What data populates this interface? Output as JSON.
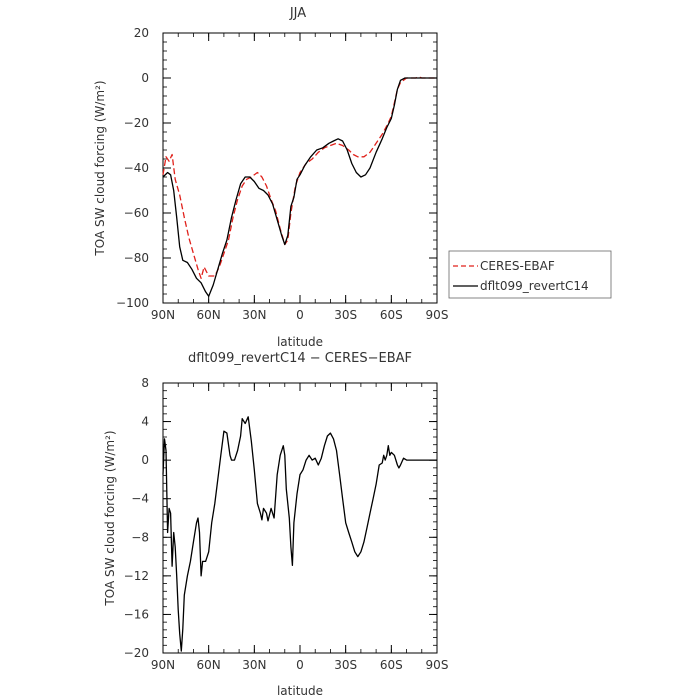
{
  "chart_data": [
    {
      "type": "line",
      "title": "JJA",
      "xlabel": "latitude",
      "ylabel": "TOA SW cloud forcing (W/m²)",
      "ylim": [
        -100,
        20
      ],
      "xlim": [
        90,
        -90
      ],
      "x_ticks": [
        90,
        60,
        30,
        0,
        -30,
        -60,
        -90
      ],
      "x_tick_labels": [
        "90N",
        "60N",
        "30N",
        "0",
        "30S",
        "60S",
        "90S"
      ],
      "y_ticks": [
        -100,
        -80,
        -60,
        -40,
        -20,
        0,
        20
      ],
      "legend_position": "right",
      "grid": false,
      "series": [
        {
          "name": "CERES-EBAF",
          "color": "#e0211b",
          "dash": true,
          "points": [
            [
              90,
              -43
            ],
            [
              88,
              -35
            ],
            [
              86,
              -37
            ],
            [
              84,
              -34
            ],
            [
              82,
              -45
            ],
            [
              79,
              -52
            ],
            [
              76,
              -62
            ],
            [
              73,
              -71
            ],
            [
              70,
              -78
            ],
            [
              67,
              -85
            ],
            [
              65,
              -89
            ],
            [
              63,
              -84
            ],
            [
              60,
              -88
            ],
            [
              56,
              -88
            ],
            [
              53,
              -84
            ],
            [
              50,
              -78
            ],
            [
              47,
              -72
            ],
            [
              44,
              -62
            ],
            [
              41,
              -54
            ],
            [
              38,
              -48
            ],
            [
              35,
              -45
            ],
            [
              32,
              -44
            ],
            [
              28,
              -42
            ],
            [
              25,
              -44
            ],
            [
              22,
              -48
            ],
            [
              19,
              -54
            ],
            [
              16,
              -59
            ],
            [
              13,
              -67
            ],
            [
              10,
              -74
            ],
            [
              8,
              -72
            ],
            [
              6,
              -60
            ],
            [
              3,
              -48
            ],
            [
              0,
              -42
            ],
            [
              -4,
              -38
            ],
            [
              -8,
              -36
            ],
            [
              -12,
              -33
            ],
            [
              -16,
              -31
            ],
            [
              -20,
              -30
            ],
            [
              -24,
              -29
            ],
            [
              -28,
              -30
            ],
            [
              -32,
              -32
            ],
            [
              -35,
              -34
            ],
            [
              -38,
              -35
            ],
            [
              -42,
              -35
            ],
            [
              -46,
              -33
            ],
            [
              -50,
              -29
            ],
            [
              -54,
              -25
            ],
            [
              -58,
              -20
            ],
            [
              -60,
              -17
            ],
            [
              -62,
              -11
            ],
            [
              -64,
              -5
            ],
            [
              -66,
              -2
            ],
            [
              -70,
              0
            ],
            [
              -74,
              0
            ],
            [
              -76,
              0
            ],
            [
              -78,
              0.5
            ],
            [
              -80,
              0
            ],
            [
              -85,
              0
            ],
            [
              -90,
              0
            ]
          ]
        },
        {
          "name": "dflt099_revertC14",
          "color": "#000000",
          "dash": false,
          "points": [
            [
              90,
              -44
            ],
            [
              87,
              -42
            ],
            [
              85,
              -43
            ],
            [
              83,
              -50
            ],
            [
              81,
              -62
            ],
            [
              79,
              -75
            ],
            [
              77,
              -81
            ],
            [
              74,
              -82
            ],
            [
              71,
              -85
            ],
            [
              68,
              -89
            ],
            [
              65,
              -91
            ],
            [
              62,
              -95
            ],
            [
              60,
              -97
            ],
            [
              57,
              -92
            ],
            [
              54,
              -85
            ],
            [
              51,
              -78
            ],
            [
              48,
              -72
            ],
            [
              45,
              -62
            ],
            [
              42,
              -54
            ],
            [
              39,
              -47
            ],
            [
              36,
              -44
            ],
            [
              33,
              -44
            ],
            [
              30,
              -46
            ],
            [
              27,
              -49
            ],
            [
              24,
              -50
            ],
            [
              21,
              -52
            ],
            [
              18,
              -56
            ],
            [
              15,
              -63
            ],
            [
              12,
              -70
            ],
            [
              10,
              -74
            ],
            [
              8,
              -70
            ],
            [
              6,
              -57
            ],
            [
              4,
              -53
            ],
            [
              2,
              -45
            ],
            [
              0,
              -43
            ],
            [
              -3,
              -39
            ],
            [
              -7,
              -35
            ],
            [
              -11,
              -32
            ],
            [
              -15,
              -31
            ],
            [
              -19,
              -29
            ],
            [
              -22,
              -28
            ],
            [
              -25,
              -27
            ],
            [
              -28,
              -28
            ],
            [
              -31,
              -32
            ],
            [
              -34,
              -38
            ],
            [
              -37,
              -42
            ],
            [
              -40,
              -44
            ],
            [
              -43,
              -43
            ],
            [
              -46,
              -40
            ],
            [
              -50,
              -33
            ],
            [
              -54,
              -27
            ],
            [
              -57,
              -22
            ],
            [
              -60,
              -18
            ],
            [
              -62,
              -12
            ],
            [
              -64,
              -5
            ],
            [
              -66,
              -1
            ],
            [
              -69,
              0
            ],
            [
              -73,
              0
            ],
            [
              -78,
              0
            ],
            [
              -85,
              0
            ],
            [
              -90,
              0
            ]
          ]
        }
      ]
    },
    {
      "type": "line",
      "title": "dflt099_revertC14 − CERES−EBAF",
      "xlabel": "latitude",
      "ylabel": "TOA SW cloud forcing (W/m²)",
      "ylim": [
        -20,
        8
      ],
      "xlim": [
        90,
        -90
      ],
      "x_ticks": [
        90,
        60,
        30,
        0,
        -30,
        -60,
        -90
      ],
      "x_tick_labels": [
        "90N",
        "60N",
        "30N",
        "0",
        "30S",
        "60S",
        "90S"
      ],
      "y_ticks": [
        -20,
        -16,
        -12,
        -8,
        -4,
        0,
        4,
        8
      ],
      "grid": false,
      "series": [
        {
          "name": "",
          "color": "#000000",
          "dash": false,
          "points": [
            [
              90,
              -1.5
            ],
            [
              89,
              2.2
            ],
            [
              88,
              1.0
            ],
            [
              87,
              -7.5
            ],
            [
              86,
              -5.0
            ],
            [
              85,
              -5.5
            ],
            [
              84,
              -11.0
            ],
            [
              83,
              -7.5
            ],
            [
              82,
              -9.0
            ],
            [
              81,
              -12.0
            ],
            [
              80,
              -15.5
            ],
            [
              79,
              -18.0
            ],
            [
              78,
              -19.8
            ],
            [
              77,
              -17.5
            ],
            [
              76,
              -14.0
            ],
            [
              74,
              -12.0
            ],
            [
              72,
              -10.5
            ],
            [
              70,
              -8.5
            ],
            [
              68,
              -6.5
            ],
            [
              67,
              -6.0
            ],
            [
              66,
              -7.5
            ],
            [
              65,
              -12.0
            ],
            [
              64,
              -10.5
            ],
            [
              62,
              -10.5
            ],
            [
              60,
              -9.5
            ],
            [
              58,
              -6.5
            ],
            [
              56,
              -4.5
            ],
            [
              54,
              -2.0
            ],
            [
              52,
              0.5
            ],
            [
              50,
              3.0
            ],
            [
              48,
              2.8
            ],
            [
              46,
              0.5
            ],
            [
              45,
              0.0
            ],
            [
              43,
              0.0
            ],
            [
              41,
              1.0
            ],
            [
              39,
              2.5
            ],
            [
              38,
              4.3
            ],
            [
              36,
              3.8
            ],
            [
              34,
              4.5
            ],
            [
              32,
              2.0
            ],
            [
              30,
              -1.0
            ],
            [
              28,
              -4.5
            ],
            [
              26,
              -5.5
            ],
            [
              25,
              -6.2
            ],
            [
              24,
              -5.0
            ],
            [
              22,
              -5.5
            ],
            [
              21,
              -6.3
            ],
            [
              19,
              -5.0
            ],
            [
              17,
              -6.0
            ],
            [
              15,
              -1.5
            ],
            [
              13,
              0.5
            ],
            [
              11,
              1.5
            ],
            [
              10,
              0.5
            ],
            [
              9,
              -3.0
            ],
            [
              7,
              -6.0
            ],
            [
              6,
              -9.0
            ],
            [
              5,
              -10.9
            ],
            [
              4,
              -6.5
            ],
            [
              2,
              -3.5
            ],
            [
              0,
              -1.5
            ],
            [
              -2,
              -1.0
            ],
            [
              -4,
              0.0
            ],
            [
              -6,
              0.5
            ],
            [
              -8,
              0.0
            ],
            [
              -10,
              0.2
            ],
            [
              -12,
              -0.5
            ],
            [
              -14,
              0.2
            ],
            [
              -16,
              1.5
            ],
            [
              -18,
              2.5
            ],
            [
              -20,
              2.8
            ],
            [
              -22,
              2.2
            ],
            [
              -24,
              1.0
            ],
            [
              -26,
              -1.5
            ],
            [
              -28,
              -4.0
            ],
            [
              -30,
              -6.5
            ],
            [
              -32,
              -7.5
            ],
            [
              -34,
              -8.5
            ],
            [
              -36,
              -9.5
            ],
            [
              -38,
              -10.0
            ],
            [
              -40,
              -9.5
            ],
            [
              -42,
              -8.5
            ],
            [
              -44,
              -7.0
            ],
            [
              -46,
              -5.5
            ],
            [
              -48,
              -4.0
            ],
            [
              -50,
              -2.5
            ],
            [
              -52,
              -0.5
            ],
            [
              -54,
              -0.3
            ],
            [
              -55,
              0.5
            ],
            [
              -56,
              0.0
            ],
            [
              -57,
              0.5
            ],
            [
              -58,
              1.5
            ],
            [
              -59,
              0.5
            ],
            [
              -60,
              0.8
            ],
            [
              -62,
              0.5
            ],
            [
              -64,
              -0.5
            ],
            [
              -65,
              -0.8
            ],
            [
              -66,
              -0.5
            ],
            [
              -68,
              0.2
            ],
            [
              -70,
              0.0
            ],
            [
              -74,
              0.0
            ],
            [
              -78,
              0.0
            ],
            [
              -82,
              0.0
            ],
            [
              -86,
              0.0
            ],
            [
              -90,
              0.0
            ]
          ]
        }
      ]
    }
  ]
}
